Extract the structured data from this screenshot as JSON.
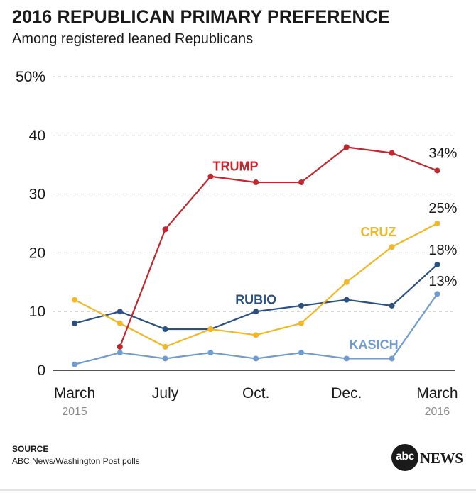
{
  "title": "2016 REPUBLICAN PRIMARY PREFERENCE",
  "subtitle": "Among registered leaned Republicans",
  "chart_data": {
    "type": "line",
    "x": [
      0,
      1,
      2,
      3,
      4,
      5,
      6,
      7,
      8
    ],
    "ylim": [
      0,
      50
    ],
    "yticks": [
      "0",
      "10",
      "20",
      "30",
      "40",
      "50%"
    ],
    "ytick_values": [
      0,
      10,
      20,
      30,
      40,
      50
    ],
    "xtick_labels": [
      {
        "x": 0,
        "label": "March",
        "sub": "2015"
      },
      {
        "x": 2,
        "label": "July",
        "sub": ""
      },
      {
        "x": 4,
        "label": "Oct.",
        "sub": ""
      },
      {
        "x": 6,
        "label": "Dec.",
        "sub": ""
      },
      {
        "x": 8,
        "label": "March",
        "sub": "2016"
      }
    ],
    "grid": true,
    "series": [
      {
        "name": "TRUMP",
        "color": "#c4262e",
        "values": [
          null,
          4,
          24,
          33,
          32,
          32,
          38,
          37,
          34
        ],
        "end_label": "34%"
      },
      {
        "name": "CRUZ",
        "color": "#f2b824",
        "values": [
          12,
          8,
          4,
          7,
          6,
          8,
          15,
          21,
          25
        ],
        "end_label": "25%"
      },
      {
        "name": "RUBIO",
        "color": "#2b5183",
        "values": [
          8,
          10,
          7,
          7,
          10,
          11,
          12,
          11,
          18
        ],
        "end_label": "18%"
      },
      {
        "name": "KASICH",
        "color": "#6f9bd1",
        "values": [
          1,
          3,
          2,
          3,
          2,
          3,
          2,
          2,
          13
        ],
        "end_label": "13%"
      }
    ]
  },
  "source": {
    "label": "SOURCE",
    "text": "ABC News/Washington Post polls"
  },
  "logo": {
    "mark": "abc",
    "word": "NEWS"
  }
}
